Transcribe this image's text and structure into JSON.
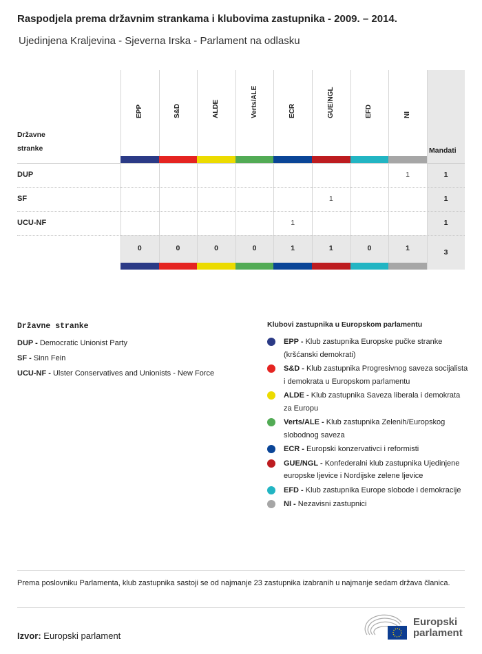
{
  "title": "Raspodjela prema državnim strankama i klubovima zastupnika - 2009. – 2014.",
  "subtitle": "Ujedinjena Kraljevina - Sjeverna Irska - Parlament na odlasku",
  "chart_data": {
    "type": "table",
    "row_header": "Državne stranke",
    "total_header": "Mandati",
    "columns": [
      {
        "name": "EPP",
        "color": "#2b3a86"
      },
      {
        "name": "S&D",
        "color": "#e52421"
      },
      {
        "name": "ALDE",
        "color": "#ecdb00"
      },
      {
        "name": "Verts/ALE",
        "color": "#52ab55"
      },
      {
        "name": "ECR",
        "color": "#0a4597"
      },
      {
        "name": "GUE/NGL",
        "color": "#bd1c20"
      },
      {
        "name": "EFD",
        "color": "#22b5c3"
      },
      {
        "name": "NI",
        "color": "#a6a6a6"
      }
    ],
    "rows": [
      {
        "party": "DUP",
        "values": [
          "",
          "",
          "",
          "",
          "",
          "",
          "",
          "1"
        ],
        "total": "1"
      },
      {
        "party": "SF",
        "values": [
          "",
          "",
          "",
          "",
          "",
          "1",
          "",
          ""
        ],
        "total": "1"
      },
      {
        "party": "UCU-NF",
        "values": [
          "",
          "",
          "",
          "",
          "1",
          "",
          "",
          ""
        ],
        "total": "1"
      }
    ],
    "totals": [
      "0",
      "0",
      "0",
      "0",
      "1",
      "1",
      "0",
      "1"
    ],
    "grand_total": "3"
  },
  "parties_legend": {
    "heading": "Državne stranke",
    "items": [
      {
        "abbr": "DUP -",
        "name": "Democratic Unionist Party"
      },
      {
        "abbr": "SF -",
        "name": "Sinn Fein"
      },
      {
        "abbr": "UCU-NF -",
        "name": "Ulster Conservatives and Unionists - New Force"
      }
    ]
  },
  "clubs_legend": {
    "heading": "Klubovi zastupnika u Europskom parlamentu",
    "items": [
      {
        "abbr": "EPP -",
        "name": "Klub zastupnika Europske pučke stranke (kršćanski demokrati)",
        "color": "#2b3a86"
      },
      {
        "abbr": "S&D -",
        "name": "Klub zastupnika Progresivnog saveza socijalista i demokrata u Europskom parlamentu",
        "color": "#e52421"
      },
      {
        "abbr": "ALDE -",
        "name": "Klub zastupnika Saveza liberala i demokrata za Europu",
        "color": "#ecdb00"
      },
      {
        "abbr": "Verts/ALE -",
        "name": "Klub zastupnika Zelenih/Europskog slobodnog saveza",
        "color": "#52ab55"
      },
      {
        "abbr": "ECR -",
        "name": "Europski konzervativci i reformisti",
        "color": "#0a4597"
      },
      {
        "abbr": "GUE/NGL -",
        "name": "Konfederalni klub zastupnika Ujedinjene europske ljevice i Nordijske zelene ljevice",
        "color": "#bd1c20"
      },
      {
        "abbr": "EFD -",
        "name": "Klub zastupnika Europe slobode i demokracije",
        "color": "#22b5c3"
      },
      {
        "abbr": "NI -",
        "name": "Nezavisni zastupnici",
        "color": "#a6a6a6"
      }
    ]
  },
  "footnote": "Prema poslovniku Parlamenta, klub zastupnika sastoji se od najmanje 23 zastupnika izabranih u najmanje sedam država članica.",
  "source": {
    "label": "Izvor:",
    "value": "Europski parlament"
  },
  "logo": {
    "line1": "Europski",
    "line2": "parlament"
  }
}
